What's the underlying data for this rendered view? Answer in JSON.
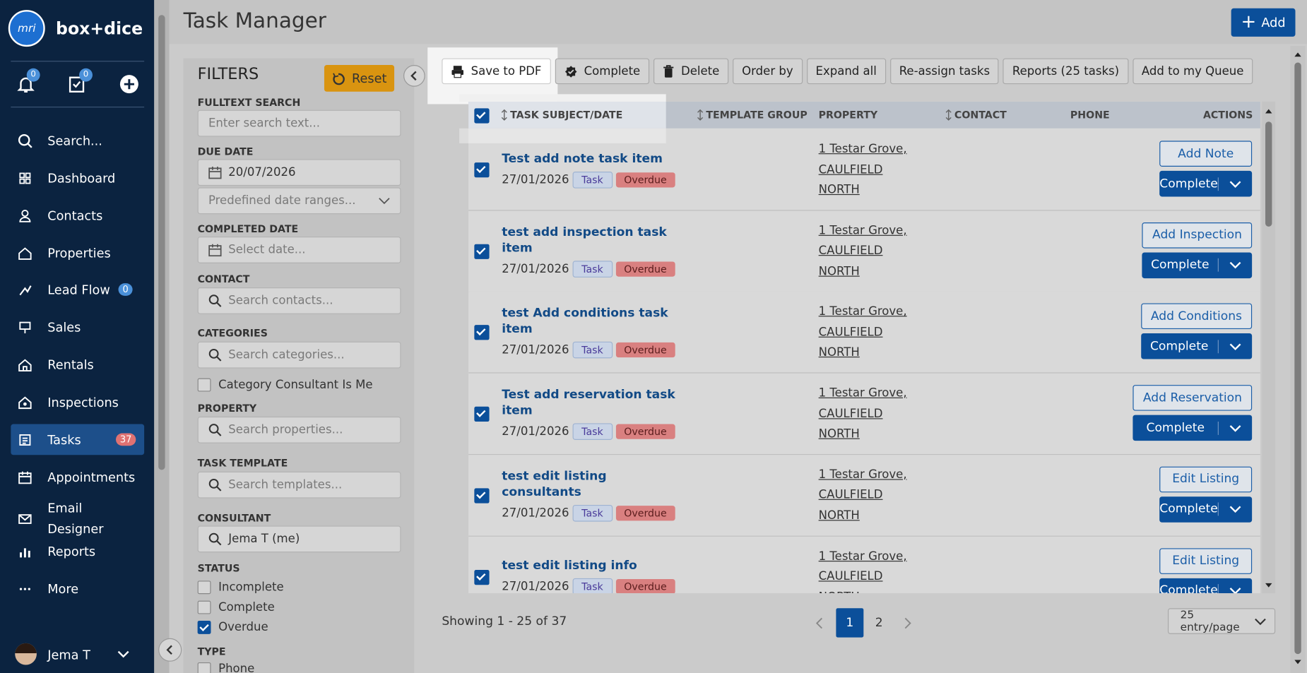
{
  "sidebar": {
    "logo": "mri",
    "brand": "box+dice",
    "notification_count": "0",
    "task_count": "0",
    "nav": [
      {
        "label": "Search..."
      },
      {
        "label": "Dashboard"
      },
      {
        "label": "Contacts"
      },
      {
        "label": "Properties"
      },
      {
        "label": "Lead Flow",
        "badge": "0"
      },
      {
        "label": "Sales"
      },
      {
        "label": "Rentals"
      },
      {
        "label": "Inspections"
      },
      {
        "label": "Tasks",
        "badge": "37",
        "active": true
      },
      {
        "label": "Appointments"
      },
      {
        "label": "Email Designer"
      },
      {
        "label": "Reports"
      },
      {
        "label": "More"
      }
    ],
    "user": "Jema T"
  },
  "header": {
    "title": "Task Manager",
    "add_button": "Add"
  },
  "filters": {
    "title": "FILTERS",
    "reset": "Reset",
    "fulltext": {
      "label": "FULLTEXT SEARCH",
      "placeholder": "Enter search text..."
    },
    "due_date": {
      "label": "DUE DATE",
      "value": "20/07/2026",
      "range_placeholder": "Predefined date ranges..."
    },
    "completed_date": {
      "label": "COMPLETED DATE",
      "placeholder": "Select date..."
    },
    "contact": {
      "label": "CONTACT",
      "placeholder": "Search contacts..."
    },
    "categories": {
      "label": "CATEGORIES",
      "placeholder": "Search categories...",
      "consultant_is_me": {
        "label": "Category Consultant Is Me",
        "checked": false
      }
    },
    "property": {
      "label": "PROPERTY",
      "placeholder": "Search properties..."
    },
    "task_template": {
      "label": "TASK TEMPLATE",
      "placeholder": "Search templates..."
    },
    "consultant": {
      "label": "CONSULTANT",
      "value": "Jema T (me)"
    },
    "status": {
      "label": "STATUS",
      "options": [
        {
          "label": "Incomplete",
          "checked": false
        },
        {
          "label": "Complete",
          "checked": false
        },
        {
          "label": "Overdue",
          "checked": true
        }
      ]
    },
    "type": {
      "label": "TYPE",
      "options": [
        {
          "label": "Phone",
          "checked": false
        }
      ]
    }
  },
  "toolbar": [
    "Save to PDF",
    "Complete",
    "Delete",
    "Order by",
    "Expand all",
    "Re-assign tasks",
    "Reports (25 tasks)",
    "Add to my Queue"
  ],
  "table": {
    "select_all": true,
    "columns": [
      "TASK SUBJECT/DATE",
      "TEMPLATE GROUP",
      "PROPERTY",
      "CONTACT",
      "PHONE",
      "ACTIONS"
    ],
    "rows": [
      {
        "selected": true,
        "subject": "Test add note task item",
        "date": "27/01/2026",
        "type": "Task",
        "status": "Overdue",
        "property": [
          "1 Testar Grove,",
          "CAULFIELD",
          "NORTH"
        ],
        "action": "Add Note",
        "complete": "Complete"
      },
      {
        "selected": true,
        "subject": "test add inspection task item",
        "date": "27/01/2026",
        "type": "Task",
        "status": "Overdue",
        "property": [
          "1 Testar Grove,",
          "CAULFIELD",
          "NORTH"
        ],
        "action": "Add Inspection",
        "complete": "Complete"
      },
      {
        "selected": true,
        "subject": "test Add conditions task item",
        "date": "27/01/2026",
        "type": "Task",
        "status": "Overdue",
        "property": [
          "1 Testar Grove,",
          "CAULFIELD",
          "NORTH"
        ],
        "action": "Add Conditions",
        "complete": "Complete"
      },
      {
        "selected": true,
        "subject": "Test add reservation task item",
        "date": "27/01/2026",
        "type": "Task",
        "status": "Overdue",
        "property": [
          "1 Testar Grove,",
          "CAULFIELD",
          "NORTH"
        ],
        "action": "Add Reservation",
        "complete": "Complete"
      },
      {
        "selected": true,
        "subject": "test edit listing consultants",
        "date": "27/01/2026",
        "type": "Task",
        "status": "Overdue",
        "property": [
          "1 Testar Grove,",
          "CAULFIELD",
          "NORTH"
        ],
        "action": "Edit Listing",
        "complete": "Complete"
      },
      {
        "selected": true,
        "subject": "test edit listing info",
        "date": "27/01/2026",
        "type": "Task",
        "status": "Overdue",
        "property": [
          "1 Testar Grove,",
          "CAULFIELD",
          "NORTH"
        ],
        "action": "Edit Listing",
        "complete": "Complete"
      }
    ]
  },
  "footer": {
    "showing": "Showing 1 - 25 of 37",
    "pages": [
      {
        "label": "1",
        "active": true
      },
      {
        "label": "2",
        "active": false
      }
    ],
    "page_size": "25 entry/page"
  }
}
